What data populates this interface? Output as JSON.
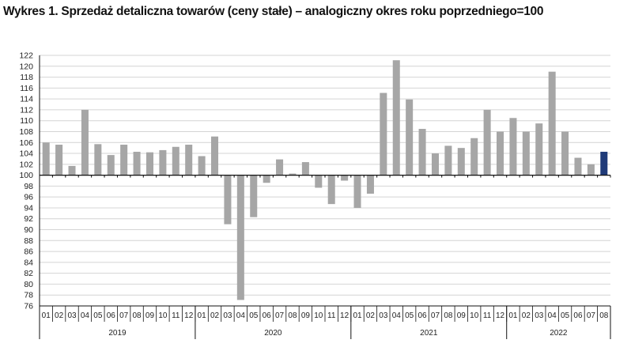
{
  "title": "Wykres 1. Sprzedaż detaliczna towarów (ceny stałe) – analogiczny okres roku poprzedniego=100",
  "chart_data": {
    "type": "bar",
    "baseline": 100,
    "ylim": [
      76,
      122
    ],
    "yticks": [
      76,
      78,
      80,
      82,
      84,
      86,
      88,
      90,
      92,
      94,
      96,
      98,
      100,
      102,
      104,
      106,
      108,
      110,
      112,
      114,
      116,
      118,
      120,
      122
    ],
    "grid": true,
    "colors": {
      "default": "#a6a6a6",
      "highlight": "#1f3a78"
    },
    "highlight_last": true,
    "years": [
      {
        "label": "2019",
        "months": [
          "01",
          "02",
          "03",
          "04",
          "05",
          "06",
          "07",
          "08",
          "09",
          "10",
          "11",
          "12"
        ]
      },
      {
        "label": "2020",
        "months": [
          "01",
          "02",
          "03",
          "04",
          "05",
          "06",
          "07",
          "08",
          "09",
          "10",
          "11",
          "12"
        ]
      },
      {
        "label": "2021",
        "months": [
          "01",
          "02",
          "03",
          "04",
          "05",
          "06",
          "07",
          "08",
          "09",
          "10",
          "11",
          "12"
        ]
      },
      {
        "label": "2022",
        "months": [
          "01",
          "02",
          "03",
          "04",
          "05",
          "06",
          "07",
          "08"
        ]
      }
    ],
    "values": [
      106.0,
      105.6,
      101.7,
      112.0,
      105.7,
      103.7,
      105.6,
      104.3,
      104.2,
      104.6,
      105.2,
      105.6,
      103.5,
      107.1,
      91.0,
      77.1,
      92.3,
      98.6,
      102.9,
      100.3,
      102.4,
      97.7,
      94.7,
      99.0,
      94.0,
      96.6,
      115.1,
      121.1,
      113.9,
      108.5,
      104.0,
      105.4,
      105.0,
      106.8,
      112.0,
      108.0,
      110.5,
      108.0,
      109.5,
      119.0,
      108.0,
      103.2,
      102.0,
      104.3
    ]
  }
}
